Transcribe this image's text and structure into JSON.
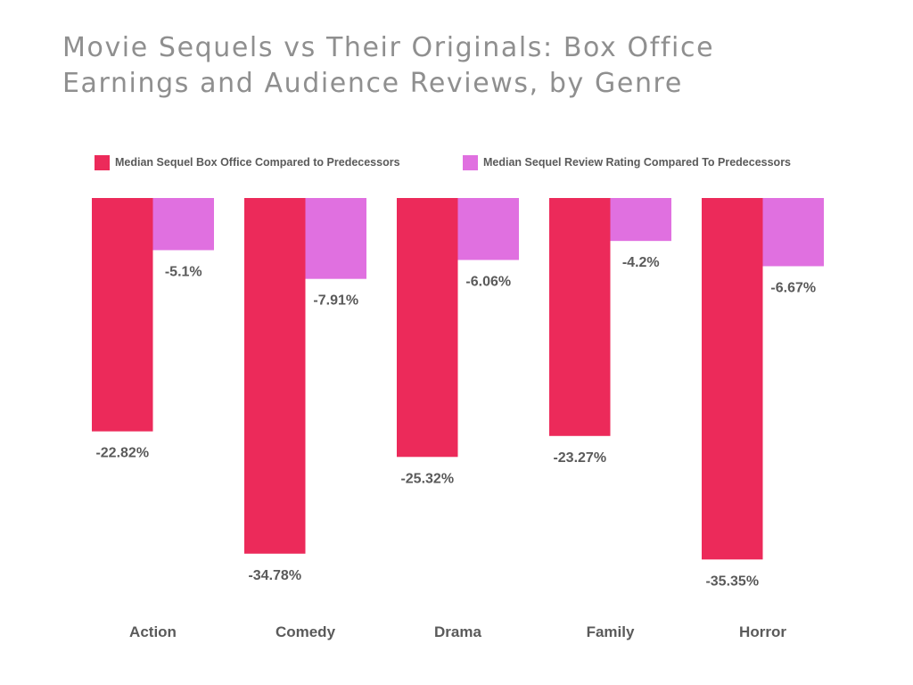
{
  "title_line1": "Movie Sequels vs Their Originals: Box Office",
  "title_line2": "Earnings and Audience Reviews, by Genre",
  "chart_data": {
    "type": "bar",
    "title": "Movie Sequels vs Their Originals: Box Office Earnings and Audience Reviews, by Genre",
    "categories": [
      "Action",
      "Comedy",
      "Drama",
      "Family",
      "Horror"
    ],
    "series": [
      {
        "name": "Median Sequel Box Office Compared to Predecessors",
        "color": "#ec2a5a",
        "values": [
          -22.82,
          -34.78,
          -25.32,
          -23.27,
          -35.35
        ],
        "labels": [
          "-22.82%",
          "-34.78%",
          "-25.32%",
          "-23.27%",
          "-35.35%"
        ]
      },
      {
        "name": "Median Sequel Review Rating Compared To Predecessors",
        "color": "#e070e0",
        "values": [
          -5.1,
          -7.91,
          -6.06,
          -4.2,
          -6.67
        ],
        "labels": [
          "-5.1%",
          "-7.91%",
          "-6.06%",
          "-4.2%",
          "-6.67%"
        ]
      }
    ],
    "xlabel": "",
    "ylabel": "",
    "ylim": [
      -40,
      0
    ],
    "grid": false,
    "legend_position": "top"
  }
}
